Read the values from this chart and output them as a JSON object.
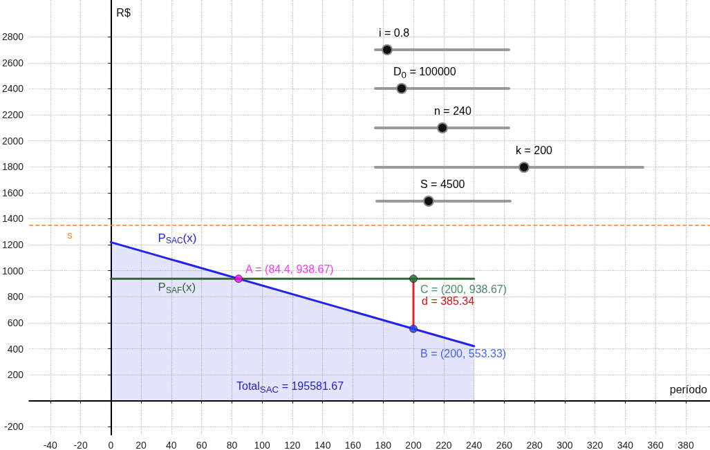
{
  "chart_data": {
    "type": "line",
    "xlabel": "período",
    "ylabel": "R$",
    "xlim": [
      -54,
      396
    ],
    "ylim": [
      -262,
      3083
    ],
    "xticks": [
      -40,
      -20,
      0,
      20,
      40,
      60,
      80,
      100,
      120,
      140,
      160,
      180,
      200,
      220,
      240,
      260,
      280,
      300,
      320,
      340,
      360,
      380
    ],
    "yticks": [
      -200,
      {
        "value": 0,
        "label": null
      },
      200,
      400,
      600,
      800,
      1000,
      1200,
      1400,
      1600,
      1800,
      2000,
      2200,
      2400,
      2600,
      2800
    ],
    "grid": true,
    "series": [
      {
        "name": "P$_{SAC}$(x)",
        "type": "area",
        "color": "#2222ee",
        "x": [
          0,
          240
        ],
        "values": [
          1220,
          420
        ]
      },
      {
        "name": "P$_{SAF}$(x)",
        "color": "#336633",
        "x": [
          0,
          240
        ],
        "values": [
          938.67,
          938.67
        ]
      },
      {
        "type": "line",
        "color": "#ee2222",
        "x": [
          200,
          200
        ],
        "values": [
          553.33,
          938.67
        ]
      },
      {
        "type": "scatter",
        "color": "#ff00ff",
        "x": [
          84.4
        ],
        "values": [
          938.67
        ],
        "value_labels": [
          "A = (84.4, 938.67)"
        ]
      },
      {
        "type": "scatter",
        "color": "#1a6b3a",
        "x": [
          200
        ],
        "values": [
          938.67
        ],
        "value_labels": [
          "C = (200, 938.67)"
        ]
      },
      {
        "type": "scatter",
        "color": "#1a3cff",
        "x": [
          200
        ],
        "values": [
          553.33
        ],
        "value_labels": [
          "B = (200, 553.33)"
        ]
      }
    ],
    "ref_lines": [
      {
        "axis": "y",
        "value": 1350,
        "label": "s",
        "color": "#ff7f2a",
        "line_style": "dashed"
      }
    ],
    "annotations": [
      "i = 0.8",
      "D$_{0}$ = 100000",
      "n = 240",
      "k = 200",
      "S = 4500",
      {
        "text": "d = 385.34",
        "x": 200,
        "y": 745
      },
      "Total$_{SAC}$ = 195581.67"
    ]
  }
}
